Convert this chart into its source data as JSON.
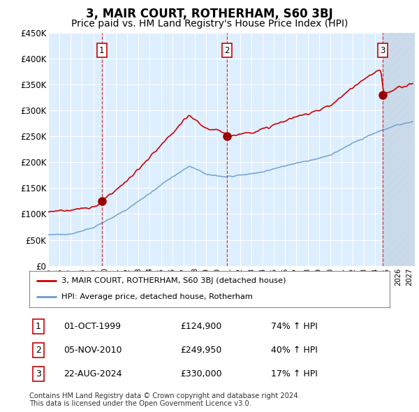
{
  "title": "3, MAIR COURT, ROTHERHAM, S60 3BJ",
  "subtitle": "Price paid vs. HM Land Registry's House Price Index (HPI)",
  "ylim": [
    0,
    450000
  ],
  "yticks": [
    0,
    50000,
    100000,
    150000,
    200000,
    250000,
    300000,
    350000,
    400000,
    450000
  ],
  "ytick_labels": [
    "£0",
    "£50K",
    "£100K",
    "£150K",
    "£200K",
    "£250K",
    "£300K",
    "£350K",
    "£400K",
    "£450K"
  ],
  "xlim_start": 1995.0,
  "xlim_end": 2027.5,
  "sale_dates": [
    1999.75,
    2010.84,
    2024.64
  ],
  "sale_prices": [
    124900,
    249950,
    330000
  ],
  "sale_labels": [
    "1",
    "2",
    "3"
  ],
  "sale_date_strs": [
    "01-OCT-1999",
    "05-NOV-2010",
    "22-AUG-2024"
  ],
  "sale_price_strs": [
    "£124,900",
    "£249,950",
    "£330,000"
  ],
  "sale_hpi_strs": [
    "74% ↑ HPI",
    "40% ↑ HPI",
    "17% ↑ HPI"
  ],
  "line_color_property": "#cc0000",
  "line_color_hpi": "#6699cc",
  "legend_label_property": "3, MAIR COURT, ROTHERHAM, S60 3BJ (detached house)",
  "legend_label_hpi": "HPI: Average price, detached house, Rotherham",
  "footnote": "Contains HM Land Registry data © Crown copyright and database right 2024.\nThis data is licensed under the Open Government Licence v3.0.",
  "background_color": "#ddeeff",
  "hatch_color": "#c8d8e8",
  "grid_color": "#ffffff",
  "title_fontsize": 12,
  "subtitle_fontsize": 10
}
